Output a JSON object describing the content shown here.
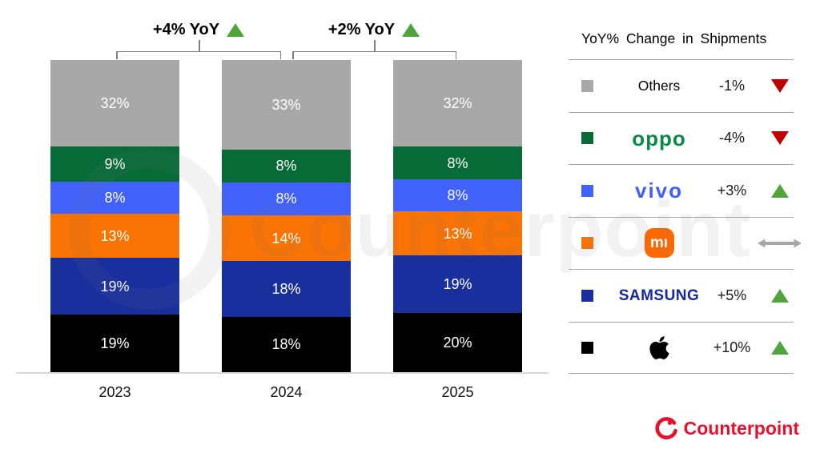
{
  "chart_data": {
    "type": "bar",
    "stacked": true,
    "categories": [
      "2023",
      "2024",
      "2025"
    ],
    "series": [
      {
        "name": "Apple",
        "color": "#000000",
        "values": [
          19,
          18,
          20
        ]
      },
      {
        "name": "Samsung",
        "color": "#1a2f9e",
        "values": [
          19,
          18,
          19
        ]
      },
      {
        "name": "Xiaomi",
        "color": "#fa7305",
        "values": [
          13,
          14,
          13
        ]
      },
      {
        "name": "vivo",
        "color": "#4161fb",
        "values": [
          8,
          8,
          8
        ]
      },
      {
        "name": "OPPO",
        "color": "#076b38",
        "values": [
          9,
          8,
          8
        ]
      },
      {
        "name": "Others",
        "color": "#a8a8a8",
        "values": [
          32,
          33,
          32
        ]
      }
    ],
    "value_suffix": "%",
    "annotations": [
      {
        "label": "+4% YoY",
        "direction": "up",
        "between": [
          "2023",
          "2024"
        ]
      },
      {
        "label": "+2% YoY",
        "direction": "up",
        "between": [
          "2024",
          "2025"
        ]
      }
    ],
    "legend_position": "right",
    "grid": false
  },
  "legend": {
    "title": "YoY% Change in Shipments",
    "rows": [
      {
        "brand": "Others",
        "logo_text": "Others",
        "change": "-1%",
        "direction": "down",
        "swatch": "#a8a8a8"
      },
      {
        "brand": "OPPO",
        "logo_text": "oppo",
        "change": "-4%",
        "direction": "down",
        "swatch": "#076b38"
      },
      {
        "brand": "vivo",
        "logo_text": "vivo",
        "change": "+3%",
        "direction": "up",
        "swatch": "#4161fb"
      },
      {
        "brand": "Xiaomi",
        "logo_text": "mı",
        "change": "",
        "direction": "flat",
        "swatch": "#fa7305"
      },
      {
        "brand": "Samsung",
        "logo_text": "SAMSUNG",
        "change": "+5%",
        "direction": "up",
        "swatch": "#1a2f9e"
      },
      {
        "brand": "Apple",
        "logo_text": "",
        "change": "+10%",
        "direction": "up",
        "swatch": "#000000"
      }
    ]
  },
  "colors": {
    "up_green": "#4fa53a",
    "down_red": "#c00000",
    "flat_gray": "#a6a6a6",
    "counterpoint_red": "#e8112d",
    "mi_orange": "#ff6900"
  },
  "watermark": "Counterpoint",
  "footer": {
    "logo_text": "Counterpoint"
  }
}
